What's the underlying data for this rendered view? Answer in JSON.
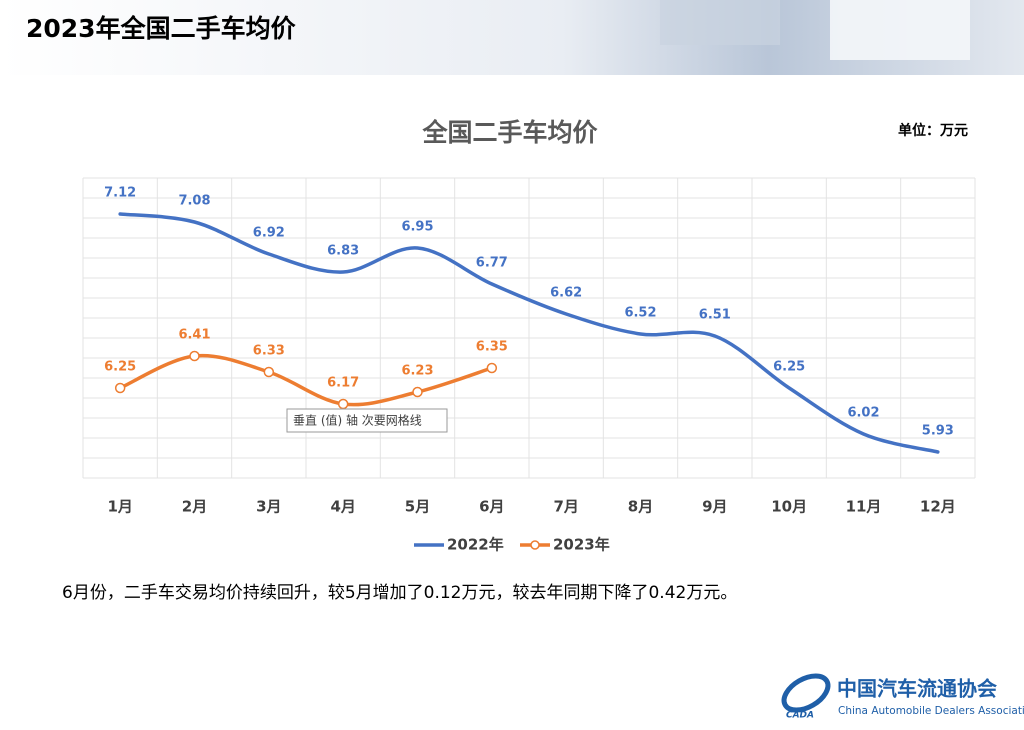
{
  "header": {
    "title": "2023年全国二手车均价"
  },
  "chart_data": {
    "type": "line",
    "title": "全国二手车均价",
    "unit": "单位：万元",
    "categories": [
      "1月",
      "2月",
      "3月",
      "4月",
      "5月",
      "6月",
      "7月",
      "8月",
      "9月",
      "10月",
      "11月",
      "12月"
    ],
    "series": [
      {
        "name": "2022年",
        "color": "#4472c4",
        "values": [
          7.12,
          7.08,
          6.92,
          6.83,
          6.95,
          6.77,
          6.62,
          6.52,
          6.51,
          6.25,
          6.02,
          5.93
        ]
      },
      {
        "name": "2023年",
        "color": "#ed7d31",
        "values": [
          6.25,
          6.41,
          6.33,
          6.17,
          6.23,
          6.35,
          null,
          null,
          null,
          null,
          null,
          null
        ]
      }
    ],
    "ylim": [
      5.8,
      7.3
    ],
    "yticks": [
      5.8,
      5.9,
      6.0,
      6.1,
      6.2,
      6.3,
      6.4,
      6.5,
      6.6,
      6.7,
      6.8,
      6.9,
      7.0,
      7.1,
      7.2,
      7.3
    ],
    "grid": true,
    "legend": "bottom",
    "smooth": true,
    "tooltip": "垂直 (值) 轴 次要网格线"
  },
  "footnote": "6月份，二手车交易均价持续回升，较5月增加了0.12万元，较去年同期下降了0.42万元。",
  "logo": {
    "name": "中国汽车流通协会",
    "english": "China Automobile Dealers Association",
    "mark": "CADA"
  }
}
